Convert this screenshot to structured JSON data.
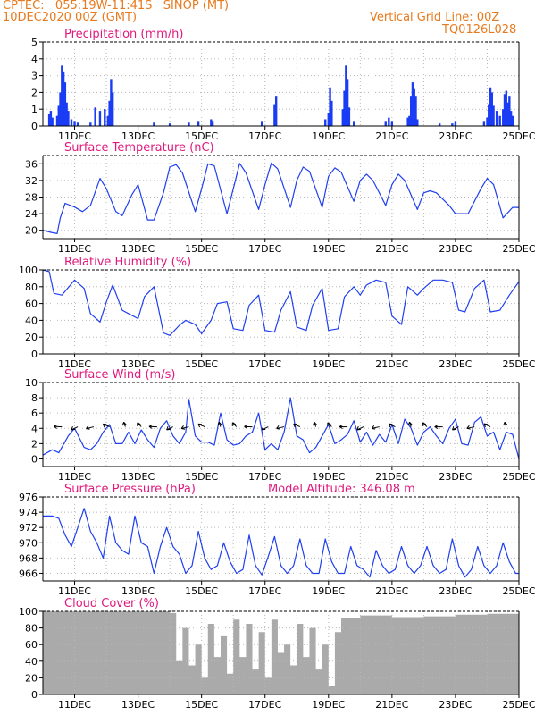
{
  "header": {
    "line1": "CPTEC:   055:19W-11:41S   SINOP (MT)",
    "line2": "10DEC2020 00Z (GMT)",
    "right1": "Vertical Grid Line: 00Z",
    "right2": "TQ0126L028"
  },
  "colors": {
    "header": "#e87a1e",
    "title": "#e0197e",
    "series": "#1f3ff0",
    "bars": "#1a3cf5",
    "cloud": "#aaaaaa",
    "grid": "#b8b8b8"
  },
  "chart_data": [
    {
      "id": "precip",
      "type": "bar",
      "title": "Precipitation (mm/h)",
      "ylim": [
        0,
        5
      ],
      "yticks": [
        "0",
        "1",
        "2",
        "3",
        "4",
        "5"
      ],
      "xticks": [
        "11DEC",
        "13DEC",
        "15DEC",
        "17DEC",
        "19DEC",
        "21DEC",
        "23DEC",
        "25DEC"
      ],
      "xlim_days": [
        10,
        25
      ],
      "events": [
        [
          10.2,
          0.7
        ],
        [
          10.25,
          0.9
        ],
        [
          10.3,
          0.5
        ],
        [
          10.45,
          0.6
        ],
        [
          10.5,
          1.2
        ],
        [
          10.55,
          2.0
        ],
        [
          10.6,
          3.6
        ],
        [
          10.65,
          3.2
        ],
        [
          10.7,
          2.6
        ],
        [
          10.75,
          1.4
        ],
        [
          10.8,
          0.9
        ],
        [
          10.9,
          0.4
        ],
        [
          11.0,
          0.3
        ],
        [
          11.1,
          0.2
        ],
        [
          11.5,
          0.2
        ],
        [
          11.65,
          1.1
        ],
        [
          11.8,
          0.9
        ],
        [
          11.95,
          1.0
        ],
        [
          12.05,
          0.6
        ],
        [
          12.1,
          1.5
        ],
        [
          12.15,
          2.8
        ],
        [
          12.2,
          2.0
        ],
        [
          13.5,
          0.2
        ],
        [
          14.0,
          0.15
        ],
        [
          14.6,
          0.2
        ],
        [
          14.9,
          0.3
        ],
        [
          15.3,
          0.4
        ],
        [
          15.35,
          0.3
        ],
        [
          16.9,
          0.3
        ],
        [
          17.3,
          1.3
        ],
        [
          17.35,
          1.8
        ],
        [
          18.9,
          0.4
        ],
        [
          19.0,
          0.8
        ],
        [
          19.05,
          2.3
        ],
        [
          19.1,
          1.5
        ],
        [
          19.45,
          1.0
        ],
        [
          19.5,
          2.1
        ],
        [
          19.55,
          3.6
        ],
        [
          19.6,
          2.8
        ],
        [
          19.65,
          1.1
        ],
        [
          19.8,
          0.3
        ],
        [
          20.8,
          0.3
        ],
        [
          20.9,
          0.5
        ],
        [
          21.0,
          0.3
        ],
        [
          21.5,
          0.5
        ],
        [
          21.55,
          0.6
        ],
        [
          21.6,
          1.8
        ],
        [
          21.65,
          2.6
        ],
        [
          21.7,
          2.2
        ],
        [
          21.75,
          1.8
        ],
        [
          21.8,
          0.4
        ],
        [
          22.5,
          0.15
        ],
        [
          22.9,
          0.15
        ],
        [
          23.0,
          0.3
        ],
        [
          23.9,
          0.3
        ],
        [
          24.0,
          0.5
        ],
        [
          24.05,
          1.3
        ],
        [
          24.1,
          2.3
        ],
        [
          24.15,
          2.0
        ],
        [
          24.2,
          1.2
        ],
        [
          24.3,
          0.9
        ],
        [
          24.4,
          0.6
        ],
        [
          24.5,
          1.0
        ],
        [
          24.55,
          1.9
        ],
        [
          24.6,
          2.1
        ],
        [
          24.65,
          1.4
        ],
        [
          24.7,
          1.8
        ],
        [
          24.75,
          0.9
        ],
        [
          24.8,
          0.6
        ]
      ]
    },
    {
      "id": "temp",
      "type": "line",
      "title": "Surface Temperature (nC)",
      "ylim": [
        18,
        38
      ],
      "yticks": [
        "20",
        "24",
        "28",
        "32",
        "36"
      ],
      "xticks": [
        "11DEC",
        "13DEC",
        "15DEC",
        "17DEC",
        "19DEC",
        "21DEC",
        "23DEC",
        "25DEC"
      ],
      "xlim_days": [
        10,
        25
      ],
      "x": [
        10,
        10.25,
        10.45,
        10.55,
        10.7,
        11,
        11.25,
        11.5,
        11.8,
        12,
        12.3,
        12.5,
        12.8,
        13,
        13.3,
        13.5,
        13.8,
        14,
        14.2,
        14.4,
        14.8,
        15,
        15.2,
        15.4,
        15.8,
        16,
        16.2,
        16.4,
        16.8,
        17,
        17.2,
        17.4,
        17.8,
        18,
        18.2,
        18.4,
        18.8,
        19,
        19.2,
        19.4,
        19.8,
        20,
        20.2,
        20.4,
        20.8,
        21,
        21.2,
        21.4,
        21.8,
        22,
        22.2,
        22.4,
        22.8,
        23,
        23.2,
        23.4,
        23.8,
        24,
        24.2,
        24.5,
        24.8,
        25
      ],
      "y": [
        20,
        19.5,
        19.2,
        23,
        26.5,
        25.6,
        24.5,
        26,
        32.5,
        30,
        24.5,
        23.5,
        28.5,
        31,
        22.5,
        22.5,
        29,
        35.2,
        35.8,
        33.8,
        24.5,
        30,
        36,
        35.5,
        24,
        30,
        36.1,
        33.8,
        25,
        31,
        36.2,
        34.8,
        25.5,
        32,
        35.2,
        34.2,
        25.5,
        33,
        35,
        34,
        27,
        32,
        33.5,
        32,
        26,
        31,
        33.5,
        32,
        25,
        29,
        29.5,
        29,
        26,
        24,
        24,
        24,
        30,
        32.5,
        31,
        23,
        25.5,
        25.5
      ]
    },
    {
      "id": "rh",
      "type": "line",
      "title": "Relative Humidity (%)",
      "ylim": [
        0,
        100
      ],
      "yticks": [
        "0",
        "20",
        "40",
        "60",
        "80",
        "100"
      ],
      "xticks": [
        "11DEC",
        "13DEC",
        "15DEC",
        "17DEC",
        "19DEC",
        "21DEC",
        "23DEC",
        "25DEC"
      ],
      "xlim_days": [
        10,
        25
      ],
      "x": [
        10,
        10.2,
        10.35,
        10.6,
        11,
        11.3,
        11.5,
        11.8,
        12,
        12.2,
        12.5,
        12.8,
        13,
        13.2,
        13.5,
        13.8,
        14,
        14.3,
        14.5,
        14.8,
        15,
        15.3,
        15.5,
        15.8,
        16,
        16.3,
        16.5,
        16.8,
        17,
        17.3,
        17.5,
        17.8,
        18,
        18.3,
        18.5,
        18.8,
        19,
        19.3,
        19.5,
        19.8,
        20,
        20.2,
        20.5,
        20.8,
        21,
        21.3,
        21.5,
        21.8,
        22,
        22.3,
        22.6,
        22.9,
        23.1,
        23.3,
        23.6,
        23.9,
        24.1,
        24.4,
        24.7,
        25
      ],
      "y": [
        100,
        98,
        72,
        70,
        88,
        78,
        48,
        38,
        62,
        82,
        52,
        46,
        42,
        68,
        80,
        25,
        22,
        34,
        40,
        35,
        24,
        40,
        60,
        62,
        30,
        28,
        58,
        70,
        28,
        26,
        52,
        74,
        32,
        28,
        58,
        78,
        28,
        30,
        68,
        80,
        70,
        82,
        88,
        85,
        45,
        35,
        80,
        70,
        78,
        88,
        88,
        85,
        52,
        50,
        78,
        88,
        50,
        52,
        70,
        86
      ]
    },
    {
      "id": "wind",
      "type": "line",
      "title": "Surface Wind (m/s)",
      "ylim": [
        -1,
        10
      ],
      "yticks": [
        "0",
        "2",
        "4",
        "6",
        "8",
        "10"
      ],
      "xticks": [
        "11DEC",
        "13DEC",
        "15DEC",
        "17DEC",
        "19DEC",
        "21DEC",
        "23DEC",
        "25DEC"
      ],
      "xlim_days": [
        10,
        25
      ],
      "x": [
        10,
        10.3,
        10.5,
        10.8,
        11,
        11.3,
        11.5,
        11.7,
        11.9,
        12.1,
        12.3,
        12.5,
        12.7,
        12.9,
        13.1,
        13.3,
        13.5,
        13.7,
        13.9,
        14.1,
        14.3,
        14.5,
        14.6,
        14.8,
        15,
        15.2,
        15.4,
        15.6,
        15.8,
        16,
        16.2,
        16.4,
        16.6,
        16.8,
        17,
        17.2,
        17.4,
        17.6,
        17.8,
        18,
        18.2,
        18.4,
        18.6,
        18.8,
        19,
        19.2,
        19.4,
        19.6,
        19.8,
        20,
        20.2,
        20.4,
        20.6,
        20.8,
        21,
        21.2,
        21.4,
        21.6,
        21.8,
        22,
        22.2,
        22.4,
        22.6,
        22.8,
        23,
        23.2,
        23.4,
        23.6,
        23.8,
        24,
        24.2,
        24.4,
        24.6,
        24.8,
        25
      ],
      "y": [
        0.5,
        1.2,
        0.8,
        3,
        4,
        1.5,
        1.2,
        2,
        3.5,
        4.5,
        2,
        2,
        3.5,
        2,
        3.8,
        2.5,
        1.5,
        4,
        5,
        3,
        2,
        3.5,
        7.8,
        3,
        2.2,
        2.2,
        1.8,
        6,
        2.5,
        1.8,
        2,
        3,
        3.5,
        6,
        1.2,
        2,
        1.2,
        3.5,
        8,
        3,
        2.5,
        0.8,
        1.5,
        3,
        4.5,
        2,
        2.5,
        3.2,
        5,
        2.2,
        3.5,
        1.8,
        3.2,
        2.2,
        4.5,
        2,
        5.2,
        4,
        1.8,
        3.5,
        4.2,
        3,
        2,
        4,
        5.2,
        2,
        1.8,
        4.8,
        5.5,
        3,
        3.5,
        1.2,
        3.5,
        3.2,
        0
      ]
    },
    {
      "id": "pres",
      "type": "line",
      "title": "Surface Pressure (hPa)",
      "annotation": "Model Altitude: 346.08 m",
      "ylim": [
        965,
        976
      ],
      "yticks": [
        "966",
        "968",
        "970",
        "972",
        "974",
        "976"
      ],
      "xticks": [
        "11DEC",
        "13DEC",
        "15DEC",
        "17DEC",
        "19DEC",
        "21DEC",
        "23DEC",
        "25DEC"
      ],
      "xlim_days": [
        10,
        25
      ],
      "x": [
        10,
        10.3,
        10.5,
        10.7,
        10.9,
        11.1,
        11.3,
        11.5,
        11.7,
        11.9,
        12.1,
        12.3,
        12.5,
        12.7,
        12.9,
        13.1,
        13.3,
        13.5,
        13.7,
        13.9,
        14.1,
        14.3,
        14.5,
        14.7,
        14.9,
        15.1,
        15.3,
        15.5,
        15.7,
        15.9,
        16.1,
        16.3,
        16.5,
        16.7,
        16.9,
        17.1,
        17.3,
        17.5,
        17.7,
        17.9,
        18.1,
        18.3,
        18.5,
        18.7,
        18.9,
        19.1,
        19.3,
        19.5,
        19.7,
        19.9,
        20.1,
        20.3,
        20.5,
        20.7,
        20.9,
        21.1,
        21.3,
        21.5,
        21.7,
        21.9,
        22.1,
        22.3,
        22.5,
        22.7,
        22.9,
        23.1,
        23.3,
        23.5,
        23.7,
        23.9,
        24.1,
        24.3,
        24.5,
        24.7,
        24.9,
        25
      ],
      "y": [
        973.5,
        973.5,
        973.2,
        971,
        969.5,
        972,
        974.5,
        971.5,
        970,
        968,
        973.5,
        970,
        969,
        968.5,
        973.5,
        970,
        969.5,
        966,
        969.5,
        972,
        969.5,
        968.5,
        966,
        967,
        971.5,
        968,
        966.5,
        967,
        970,
        967.5,
        966,
        966.5,
        971,
        967,
        965.8,
        968.2,
        970.8,
        967,
        966,
        967,
        970.5,
        967,
        966,
        966,
        970.5,
        967.5,
        966,
        966,
        969.5,
        967,
        966.5,
        965.5,
        969,
        967,
        966,
        966.5,
        969.5,
        967,
        966,
        967,
        969.5,
        967,
        966,
        966.5,
        970.5,
        967,
        965.5,
        966.5,
        969.5,
        967,
        966,
        967,
        970,
        967.5,
        966,
        966
      ]
    },
    {
      "id": "cloud",
      "type": "bar",
      "title": "Cloud Cover (%)",
      "ylim": [
        0,
        100
      ],
      "yticks": [
        "0",
        "20",
        "40",
        "60",
        "80",
        "100"
      ],
      "xticks": [
        "11DEC",
        "13DEC",
        "15DEC",
        "17DEC",
        "19DEC",
        "21DEC",
        "23DEC",
        "25DEC"
      ],
      "xlim_days": [
        10,
        25
      ],
      "x": [
        10,
        10.5,
        11,
        11.5,
        12,
        12.5,
        13,
        13.5,
        14,
        14.2,
        14.4,
        14.6,
        14.8,
        15,
        15.2,
        15.4,
        15.6,
        15.8,
        16,
        16.2,
        16.4,
        16.6,
        16.8,
        17,
        17.2,
        17.4,
        17.6,
        17.8,
        18,
        18.2,
        18.4,
        18.6,
        18.8,
        19,
        19.2,
        19.4,
        20,
        21,
        22,
        23,
        24,
        25
      ],
      "y": [
        100,
        100,
        100,
        100,
        100,
        100,
        100,
        100,
        98,
        40,
        80,
        35,
        60,
        20,
        85,
        45,
        70,
        25,
        90,
        45,
        85,
        30,
        75,
        20,
        90,
        50,
        60,
        35,
        85,
        45,
        80,
        30,
        60,
        10,
        75,
        92,
        95,
        93,
        94,
        96,
        97,
        97
      ]
    }
  ]
}
